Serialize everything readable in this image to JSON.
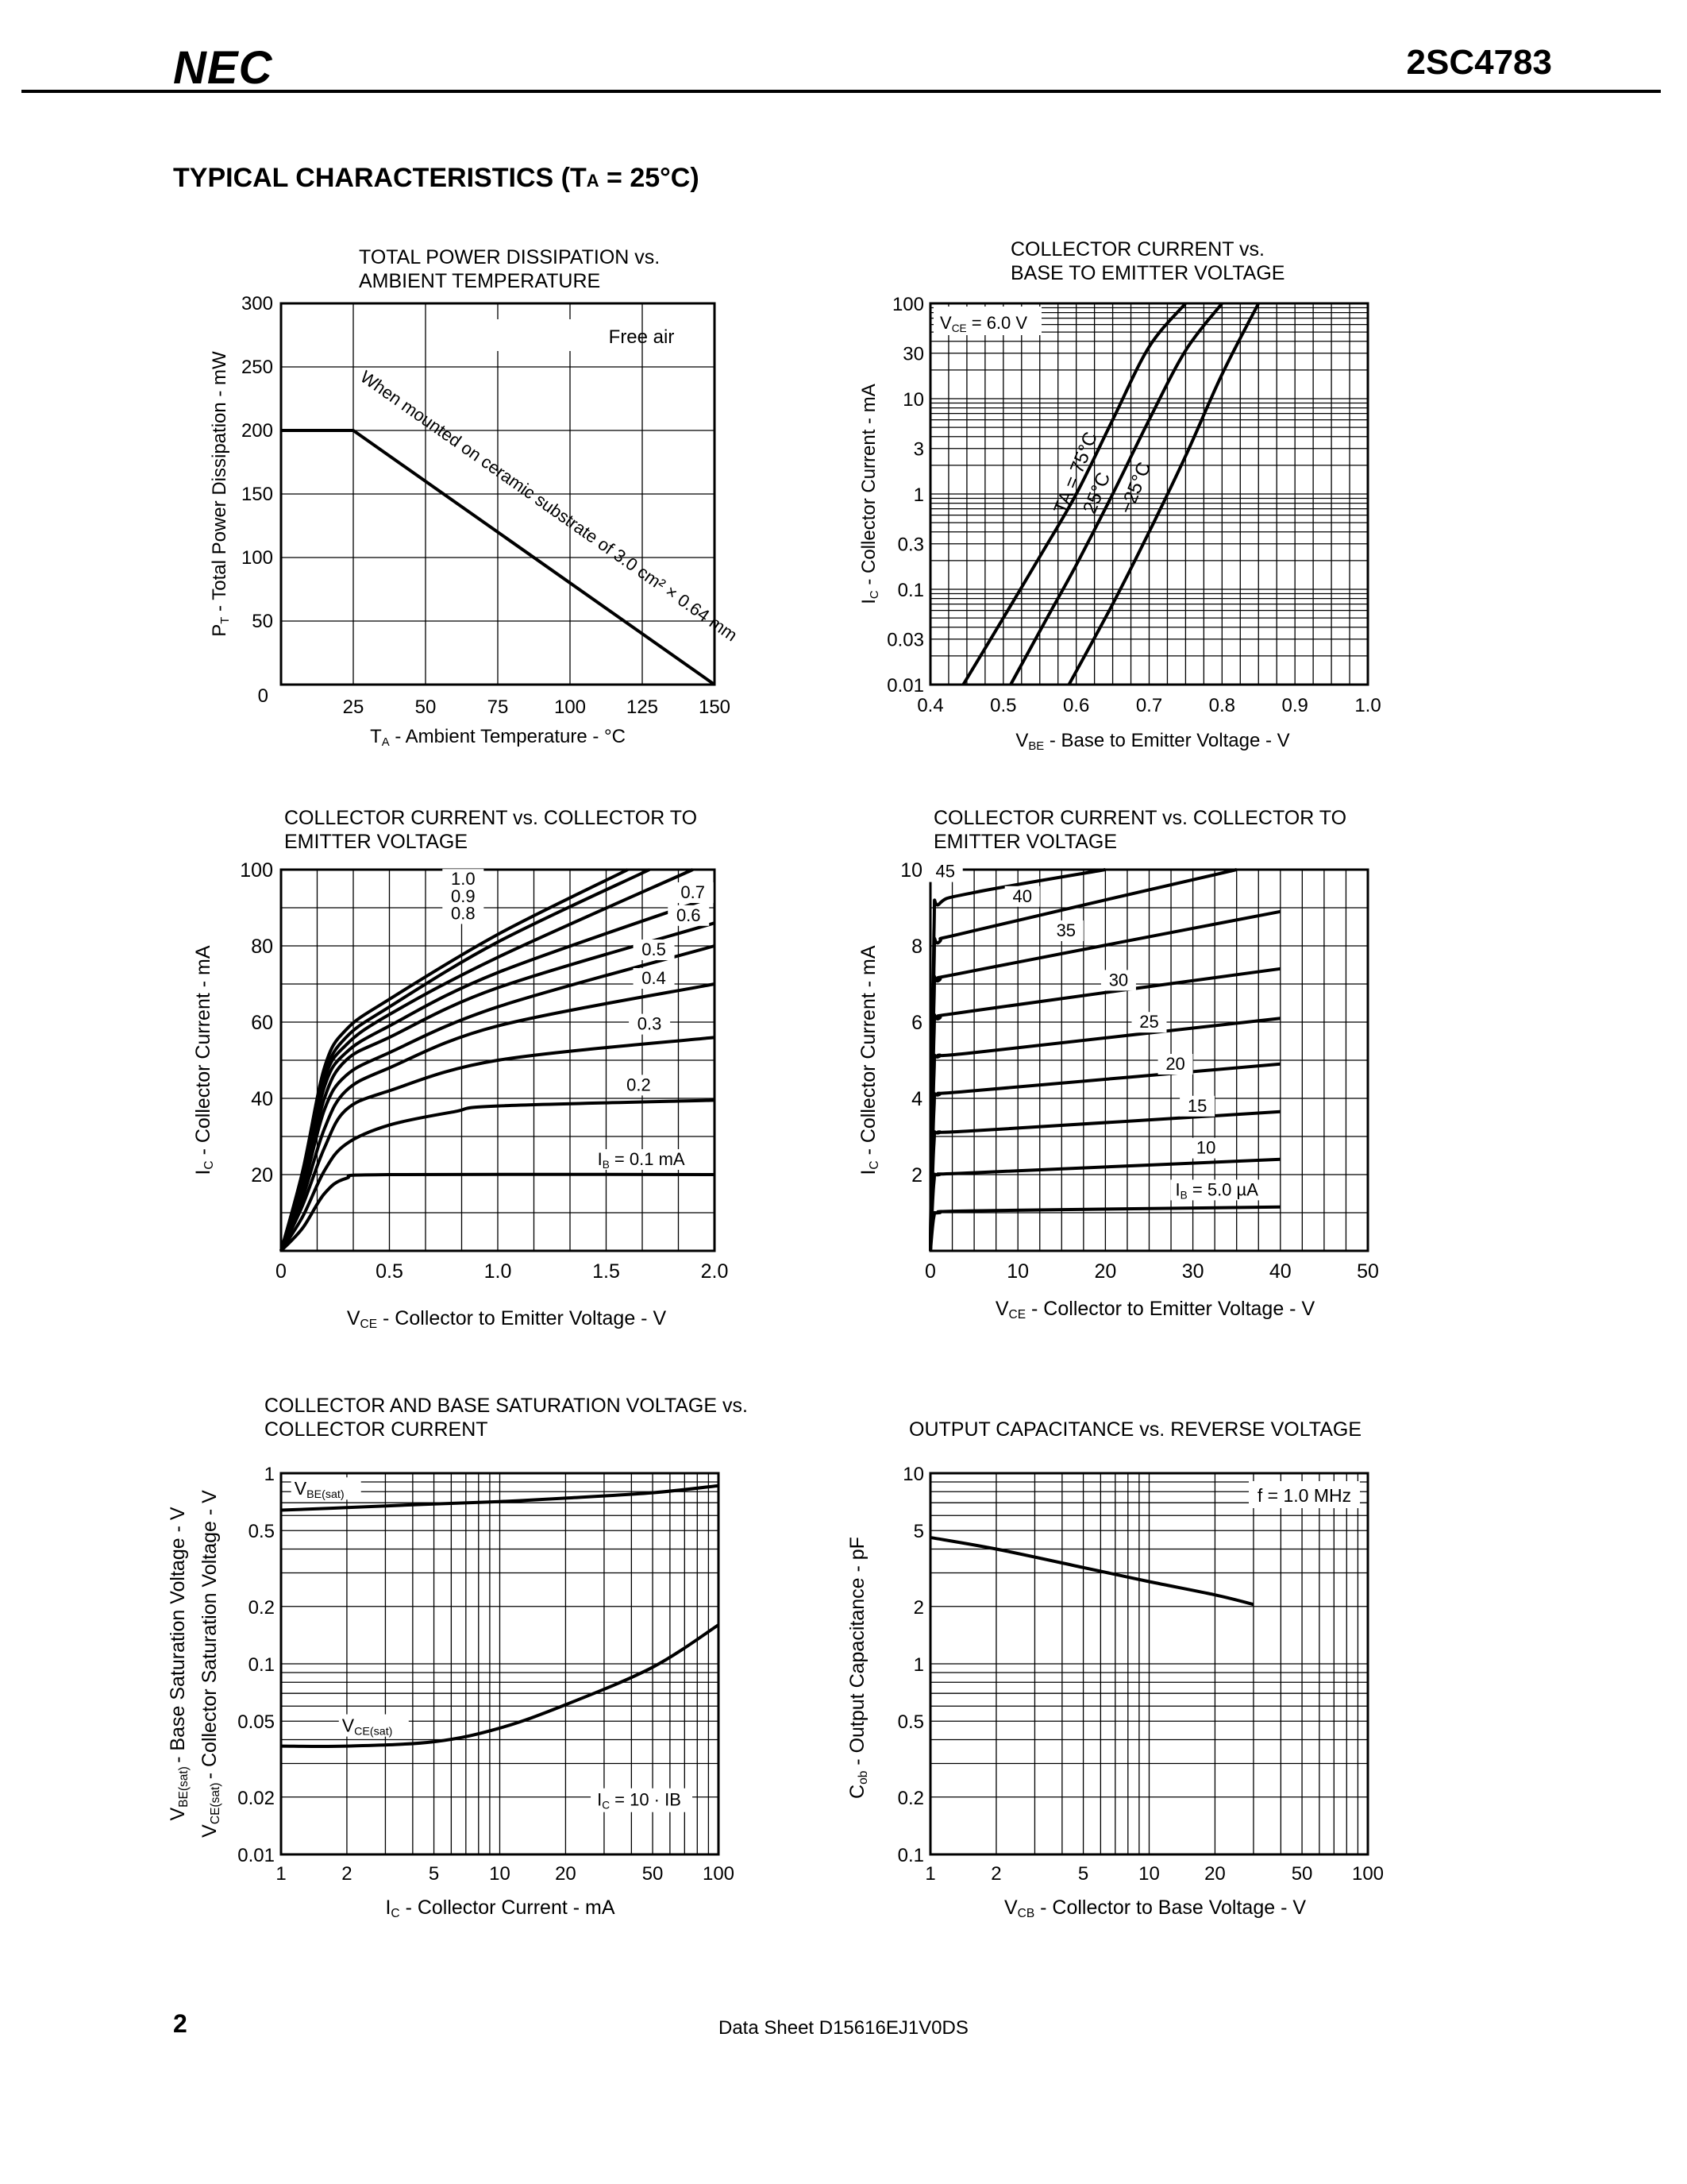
{
  "header": {
    "logo": "NEC",
    "part_number": "2SC4783"
  },
  "section_title": {
    "prefix": "TYPICAL CHARACTERISTICS (T",
    "sub": "A",
    "suffix": " = 25°C)"
  },
  "footer": {
    "page_number": "2",
    "doc_ref": "Data Sheet  D15616EJ1V0DS"
  },
  "chart_data": [
    {
      "id": "c1",
      "type": "line",
      "title": [
        "TOTAL POWER DISSIPATION vs.",
        "AMBIENT TEMPERATURE"
      ],
      "xlabel": "TA - Ambient Temperature - °C",
      "ylabel": "PT - Total Power Dissipation - mW",
      "xlim": [
        0,
        150
      ],
      "ylim": [
        0,
        300
      ],
      "xticks": [
        25,
        50,
        75,
        100,
        125,
        150
      ],
      "yticks": [
        50,
        100,
        150,
        200,
        250,
        300
      ],
      "origin_label": "0",
      "annotations": [
        "Free air",
        "When mounted on ceramic substrate of 3.0 cm² × 0.64 mm"
      ],
      "series": [
        {
          "x": [
            0,
            25,
            150
          ],
          "y": [
            200,
            200,
            0
          ]
        }
      ]
    },
    {
      "id": "c2",
      "type": "line",
      "title": [
        "COLLECTOR CURRENT vs.",
        "BASE TO EMITTER VOLTAGE"
      ],
      "xlabel": "VBE - Base to Emitter Voltage - V",
      "ylabel": "IC - Collector Current - mA",
      "xlim": [
        0.4,
        1.0
      ],
      "ylim": [
        0.01,
        100
      ],
      "yscale": "log",
      "xticks": [
        "0.4",
        "0.5",
        "0.6",
        "0.7",
        "0.8",
        "0.9",
        "1.0"
      ],
      "yticks": [
        "0.01",
        "0.03",
        "0.1",
        "0.3",
        "1",
        "3",
        "10",
        "30",
        "100"
      ],
      "annotations": [
        "VCE = 6.0 V"
      ],
      "series": [
        {
          "name": "TA = 75°C",
          "x": [
            0.445,
            0.5,
            0.55,
            0.6,
            0.65,
            0.7,
            0.75
          ],
          "y": [
            0.01,
            0.05,
            0.22,
            1.0,
            6,
            35,
            100
          ]
        },
        {
          "name": "25°C",
          "x": [
            0.51,
            0.56,
            0.6,
            0.65,
            0.7,
            0.75,
            0.8
          ],
          "y": [
            0.01,
            0.05,
            0.18,
            1.0,
            6,
            32,
            100
          ]
        },
        {
          "name": "−25°C",
          "x": [
            0.59,
            0.65,
            0.7,
            0.75,
            0.8,
            0.85
          ],
          "y": [
            0.01,
            0.07,
            0.4,
            2.5,
            18,
            100
          ]
        }
      ]
    },
    {
      "id": "c3",
      "type": "line",
      "title": [
        "COLLECTOR CURRENT vs. COLLECTOR TO",
        "EMITTER VOLTAGE"
      ],
      "xlabel": "VCE - Collector to Emitter Voltage - V",
      "ylabel": "IC - Collector Current - mA",
      "xlim": [
        0,
        2.0
      ],
      "ylim": [
        0,
        100
      ],
      "xticks": [
        "0",
        "0.5",
        "1.0",
        "1.5",
        "2.0"
      ],
      "yticks": [
        "20",
        "40",
        "60",
        "80",
        "100"
      ],
      "annotations": [
        "IB = 0.1 mA",
        "0.2",
        "0.3",
        "0.4",
        "0.5",
        "0.6",
        "0.7",
        "0.8",
        "0.9",
        "1.0"
      ],
      "series": [
        {
          "name": "0.1",
          "x": [
            0,
            0.1,
            0.2,
            0.3,
            0.5,
            2.0
          ],
          "y": [
            0,
            6,
            15,
            19,
            20,
            20
          ]
        },
        {
          "name": "0.2",
          "x": [
            0,
            0.1,
            0.2,
            0.3,
            0.5,
            0.8,
            1.0,
            2.0
          ],
          "y": [
            0,
            9,
            21,
            28,
            33,
            36.5,
            38,
            39.5
          ]
        },
        {
          "name": "0.3",
          "x": [
            0,
            0.1,
            0.2,
            0.3,
            0.5,
            1.0,
            2.0
          ],
          "y": [
            0,
            12,
            27,
            37,
            42,
            50,
            56
          ]
        },
        {
          "name": "0.4",
          "x": [
            0,
            0.1,
            0.2,
            0.3,
            0.5,
            1.0,
            2.0
          ],
          "y": [
            0,
            14,
            32,
            42,
            48,
            59,
            70
          ]
        },
        {
          "name": "0.5",
          "x": [
            0,
            0.1,
            0.2,
            0.3,
            0.5,
            1.0,
            2.0
          ],
          "y": [
            0,
            16,
            37,
            46,
            52,
            64,
            80
          ]
        },
        {
          "name": "0.6",
          "x": [
            0,
            0.1,
            0.2,
            0.3,
            0.5,
            1.0,
            2.0
          ],
          "y": [
            0,
            17,
            40,
            50,
            56,
            69,
            86
          ]
        },
        {
          "name": "0.7",
          "x": [
            0,
            0.1,
            0.2,
            0.3,
            0.5,
            1.0,
            2.0
          ],
          "y": [
            0,
            18,
            43,
            52,
            59,
            73,
            93
          ]
        },
        {
          "name": "0.8",
          "x": [
            0,
            0.1,
            0.2,
            0.3,
            0.5,
            1.0,
            1.9
          ],
          "y": [
            0,
            19,
            45,
            54,
            62,
            77,
            100
          ]
        },
        {
          "name": "0.9",
          "x": [
            0,
            0.1,
            0.2,
            0.3,
            0.5,
            1.0,
            1.7
          ],
          "y": [
            0,
            20,
            46,
            56,
            64,
            81,
            100
          ]
        },
        {
          "name": "1.0",
          "x": [
            0,
            0.1,
            0.2,
            0.3,
            0.5,
            1.0,
            1.6
          ],
          "y": [
            0,
            21,
            48,
            58,
            66,
            83,
            100
          ]
        }
      ]
    },
    {
      "id": "c4",
      "type": "line",
      "title": [
        "COLLECTOR CURRENT vs. COLLECTOR TO",
        "EMITTER VOLTAGE"
      ],
      "xlabel": "VCE - Collector to Emitter Voltage - V",
      "ylabel": "IC - Collector Current - mA",
      "xlim": [
        0,
        50
      ],
      "ylim": [
        0,
        10
      ],
      "xticks": [
        "0",
        "10",
        "20",
        "30",
        "40",
        "50"
      ],
      "yticks": [
        "2",
        "4",
        "6",
        "8",
        "10"
      ],
      "annotations": [
        "IB = 5.0 µA",
        "10",
        "15",
        "20",
        "25",
        "30",
        "35",
        "40",
        "45"
      ],
      "series": [
        {
          "name": "5",
          "x": [
            0,
            0.4,
            1,
            5,
            40
          ],
          "y": [
            0,
            0.9,
            1.0,
            1.05,
            1.15
          ]
        },
        {
          "name": "10",
          "x": [
            0,
            0.4,
            1,
            5,
            40
          ],
          "y": [
            0,
            1.8,
            2.0,
            2.05,
            2.4
          ]
        },
        {
          "name": "15",
          "x": [
            0,
            0.4,
            1,
            5,
            40
          ],
          "y": [
            0,
            2.8,
            3.1,
            3.15,
            3.65
          ]
        },
        {
          "name": "20",
          "x": [
            0,
            0.4,
            1,
            5,
            40
          ],
          "y": [
            0,
            3.7,
            4.1,
            4.2,
            4.9
          ]
        },
        {
          "name": "25",
          "x": [
            0,
            0.4,
            1,
            5,
            40
          ],
          "y": [
            0,
            4.6,
            5.1,
            5.2,
            6.1
          ]
        },
        {
          "name": "30",
          "x": [
            0,
            0.4,
            1,
            5,
            40
          ],
          "y": [
            0,
            5.6,
            6.1,
            6.3,
            7.4
          ]
        },
        {
          "name": "35",
          "x": [
            0,
            0.4,
            1,
            5,
            40
          ],
          "y": [
            0,
            6.5,
            7.1,
            7.35,
            8.9
          ]
        },
        {
          "name": "40",
          "x": [
            0,
            0.4,
            1,
            5,
            35
          ],
          "y": [
            0,
            7.4,
            8.1,
            8.4,
            10
          ]
        },
        {
          "name": "45",
          "x": [
            0,
            0.4,
            1,
            5,
            20
          ],
          "y": [
            0,
            8.3,
            9.1,
            9.4,
            10
          ]
        }
      ]
    },
    {
      "id": "c5",
      "type": "line",
      "title": [
        "COLLECTOR AND BASE SATURATION VOLTAGE vs.",
        "COLLECTOR CURRENT"
      ],
      "xlabel": "IC - Collector Current - mA",
      "ylabel": [
        "VBE(sat) - Base Saturation Voltage - V",
        "VCE(sat) - Collector Saturation Voltage - V"
      ],
      "xlim": [
        1,
        100
      ],
      "ylim": [
        0.01,
        1
      ],
      "xscale": "log",
      "yscale": "log",
      "xticks": [
        "1",
        "2",
        "5",
        "10",
        "20",
        "50",
        "100"
      ],
      "yticks": [
        "0.01",
        "0.02",
        "0.05",
        "0.1",
        "0.2",
        "0.5",
        "1"
      ],
      "annotations": [
        "IC = 10 · IB"
      ],
      "series": [
        {
          "name": "VBE(sat)",
          "x": [
            1,
            2,
            5,
            10,
            20,
            50,
            100
          ],
          "y": [
            0.64,
            0.66,
            0.69,
            0.71,
            0.74,
            0.79,
            0.86
          ]
        },
        {
          "name": "VCE(sat)",
          "x": [
            1,
            2,
            5,
            10,
            20,
            50,
            100
          ],
          "y": [
            0.037,
            0.037,
            0.039,
            0.046,
            0.061,
            0.096,
            0.16
          ]
        }
      ]
    },
    {
      "id": "c6",
      "type": "line",
      "title": [
        "OUTPUT CAPACITANCE vs. REVERSE VOLTAGE"
      ],
      "xlabel": "VCB - Collector to Base Voltage - V",
      "ylabel": "Cob - Output Capacitance - pF",
      "xlim": [
        1,
        100
      ],
      "ylim": [
        0.1,
        10
      ],
      "xscale": "log",
      "yscale": "log",
      "xticks": [
        "1",
        "2",
        "5",
        "10",
        "20",
        "50",
        "100"
      ],
      "yticks": [
        "0.1",
        "0.2",
        "0.5",
        "1",
        "2",
        "5",
        "10"
      ],
      "annotations": [
        "f = 1.0 MHz"
      ],
      "series": [
        {
          "x": [
            1,
            2,
            5,
            10,
            20,
            30
          ],
          "y": [
            4.6,
            4.0,
            3.2,
            2.7,
            2.3,
            2.05
          ]
        }
      ]
    }
  ]
}
